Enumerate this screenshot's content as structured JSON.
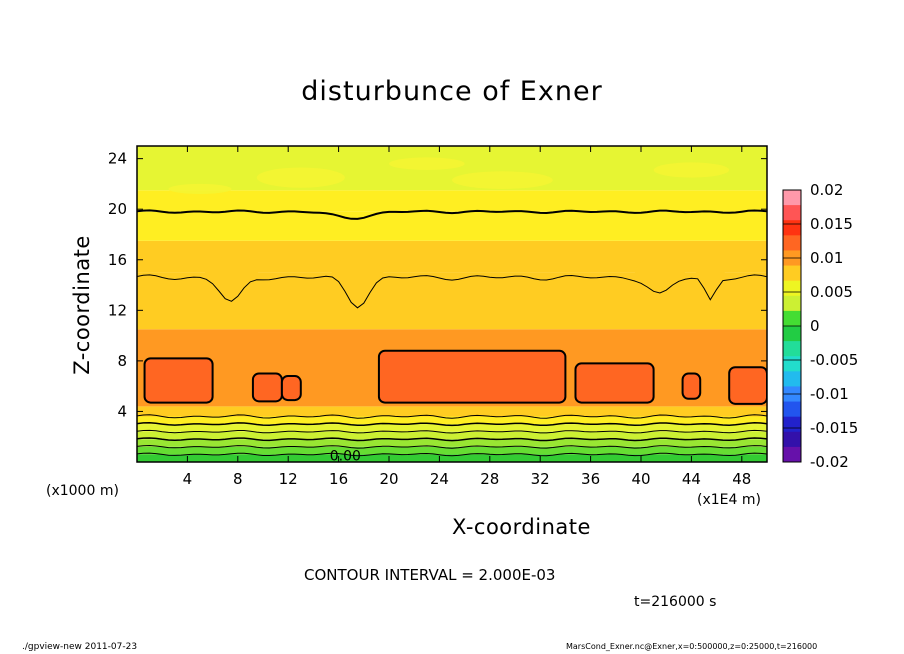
{
  "chart_data": {
    "type": "heatmap",
    "title": "disturbunce of Exner",
    "xlabel": "X-coordinate",
    "ylabel": "Z-coordinate",
    "x_unit_left": "(x1000 m)",
    "x_unit_right": "(x1E4 m)",
    "x_ticks": [
      "4",
      "8",
      "12",
      "16",
      "20",
      "24",
      "28",
      "32",
      "36",
      "40",
      "44",
      "48"
    ],
    "y_ticks": [
      "4",
      "8",
      "12",
      "16",
      "20",
      "24"
    ],
    "xlim": [
      0,
      50
    ],
    "ylim": [
      0,
      25
    ],
    "colorbar": {
      "ticks": [
        "0.02",
        "0.015",
        "0.01",
        "0.005",
        "0",
        "-0.005",
        "-0.01",
        "-0.015",
        "-0.02"
      ],
      "range": [
        -0.02,
        0.02
      ]
    },
    "contour_interval_label": "CONTOUR INTERVAL = 2.000E-03",
    "contour_label": "0.00",
    "layers": [
      {
        "z": [
          0,
          0.6
        ],
        "value": -0.004
      },
      {
        "z": [
          0.6,
          1.2
        ],
        "value": -0.002
      },
      {
        "z": [
          1.2,
          1.8
        ],
        "value": 0.0
      },
      {
        "z": [
          1.8,
          2.4
        ],
        "value": 0.002
      },
      {
        "z": [
          2.4,
          3.0
        ],
        "value": 0.004
      },
      {
        "z": [
          3.0,
          3.6
        ],
        "value": 0.006
      },
      {
        "z": [
          3.6,
          4.4
        ],
        "value": 0.008
      },
      {
        "z": [
          4.4,
          10.5
        ],
        "value": 0.01
      },
      {
        "z": [
          10.5,
          15.0
        ],
        "value": 0.008
      },
      {
        "z": [
          15.0,
          17.5
        ],
        "value": 0.007
      },
      {
        "z": [
          17.5,
          19.8
        ],
        "value": 0.006
      },
      {
        "z": [
          19.8,
          21.5
        ],
        "value": 0.005
      },
      {
        "z": [
          21.5,
          25
        ],
        "value": 0.003
      }
    ],
    "maxima_regions": [
      {
        "x": [
          0.6,
          6.0
        ],
        "z": [
          4.7,
          8.2
        ],
        "value": 0.012
      },
      {
        "x": [
          9.2,
          11.5
        ],
        "z": [
          4.8,
          7.0
        ],
        "value": 0.012
      },
      {
        "x": [
          11.5,
          13.0
        ],
        "z": [
          4.9,
          6.8
        ],
        "value": 0.012
      },
      {
        "x": [
          19.2,
          34.0
        ],
        "z": [
          4.7,
          8.8
        ],
        "value": 0.012
      },
      {
        "x": [
          34.8,
          41.0
        ],
        "z": [
          4.7,
          7.8
        ],
        "value": 0.012
      },
      {
        "x": [
          43.3,
          44.7
        ],
        "z": [
          5.0,
          7.0
        ],
        "value": 0.012
      },
      {
        "x": [
          47.0,
          50
        ],
        "z": [
          4.6,
          7.5
        ],
        "value": 0.012
      }
    ]
  },
  "colors": {
    "c_neg004": "#33cc33",
    "c_neg002": "#66dd33",
    "c_000": "#99e633",
    "c_002": "#ccf033",
    "c_004": "#e6f533",
    "c_006": "#ffee22",
    "c_008": "#ffcc22",
    "c_010": "#ff9922",
    "c_012": "#ff6622",
    "colorbar_scale": [
      "#ff99aa",
      "#ff5555",
      "#ff3311",
      "#ff6622",
      "#ff9922",
      "#ffcc22",
      "#eef522",
      "#ccf033",
      "#44dd33",
      "#22cc44",
      "#22dd99",
      "#22ddcc",
      "#22bbee",
      "#3388ff",
      "#2255ee",
      "#2222cc",
      "#3311aa",
      "#6611aa"
    ]
  },
  "footer": {
    "left": "./gpview-new   2011-07-23",
    "right": "MarsCond_Exner.nc@Exner,x=0:500000,z=0:25000,t=216000"
  },
  "time_label": "t=216000 s"
}
